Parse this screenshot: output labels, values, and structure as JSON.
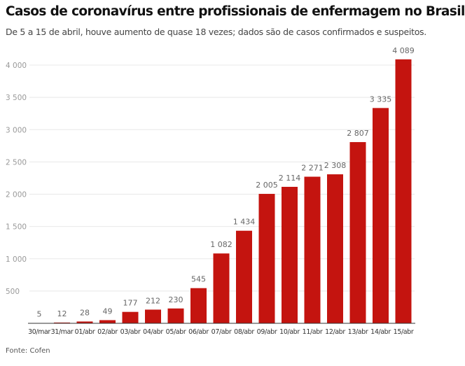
{
  "title": "Casos de coronavírus entre profissionais de enfermagem no Brasil",
  "subtitle": "De 5 a 15 de abril, houve aumento de quase 18 vezes; dados são de casos confirmados e suspeitos.",
  "source": "Fonte: Cofen",
  "chart_data": {
    "type": "bar",
    "title": "Casos de coronavírus entre profissionais de enfermagem no Brasil",
    "categories": [
      "30/mar",
      "31/mar",
      "01/abr",
      "02/abr",
      "03/abr",
      "04/abr",
      "05/abr",
      "06/abr",
      "07/abr",
      "08/abr",
      "09/abr",
      "10/abr",
      "11/abr",
      "12/abr",
      "13/abr",
      "14/abr",
      "15/abr"
    ],
    "values": [
      5,
      12,
      28,
      49,
      177,
      212,
      230,
      545,
      1082,
      1434,
      2005,
      2114,
      2271,
      2308,
      2807,
      3335,
      4089
    ],
    "value_labels": [
      "5",
      "12",
      "28",
      "49",
      "177",
      "212",
      "230",
      "545",
      "1 082",
      "1 434",
      "2 005",
      "2 114",
      "2 271",
      "2 308",
      "2 807",
      "3 335",
      "4 089"
    ],
    "yticks": [
      500,
      1000,
      1500,
      2000,
      2500,
      3000,
      3500,
      4000
    ],
    "ytick_labels": [
      "500",
      "1 000",
      "1 500",
      "2 000",
      "2 500",
      "3 000",
      "3 500",
      "4 000"
    ],
    "ylim": [
      0,
      4000
    ],
    "grid": true,
    "bar_color": "#c4140f",
    "xlabel": "",
    "ylabel": ""
  }
}
